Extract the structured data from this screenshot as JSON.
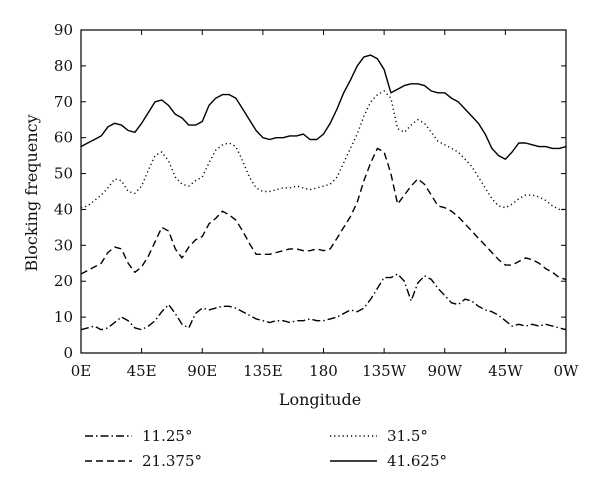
{
  "chart_data": {
    "type": "line",
    "title": "",
    "xlabel": "Longitude",
    "ylabel": "Blocking frequency",
    "x_ticks": [
      "0E",
      "45E",
      "90E",
      "135E",
      "180",
      "135W",
      "90W",
      "45W",
      "0W"
    ],
    "x_tick_values": [
      0,
      45,
      90,
      135,
      180,
      225,
      270,
      315,
      360
    ],
    "xlim": [
      0,
      360
    ],
    "ylim": [
      0,
      90
    ],
    "y_ticks": [
      0,
      10,
      20,
      30,
      40,
      50,
      60,
      70,
      80,
      90
    ],
    "grid": false,
    "legend_position": "bottom",
    "series": [
      {
        "name": "11.25°",
        "style": "dashdot",
        "x": [
          0,
          5,
          10,
          15,
          20,
          25,
          30,
          35,
          40,
          45,
          50,
          55,
          60,
          65,
          70,
          75,
          80,
          85,
          90,
          95,
          100,
          105,
          110,
          115,
          120,
          125,
          130,
          135,
          140,
          145,
          150,
          155,
          160,
          165,
          170,
          175,
          180,
          185,
          190,
          195,
          200,
          205,
          210,
          215,
          220,
          225,
          230,
          235,
          240,
          245,
          250,
          255,
          260,
          265,
          270,
          275,
          280,
          285,
          290,
          295,
          300,
          305,
          310,
          315,
          320,
          325,
          330,
          335,
          340,
          345,
          350,
          355,
          360
        ],
        "values": [
          6.5,
          7,
          7.5,
          6.5,
          7,
          8.5,
          10,
          9,
          7,
          6.5,
          7.5,
          9,
          11.5,
          13.5,
          11,
          8,
          7,
          11,
          12.5,
          12,
          12.5,
          13,
          13,
          12.5,
          11.5,
          10.5,
          9.5,
          9,
          8.5,
          9,
          9,
          8.5,
          9,
          9,
          9.5,
          9,
          9,
          9.5,
          10,
          11,
          12,
          11.5,
          12.5,
          15,
          18,
          21,
          21,
          22,
          20,
          14.5,
          19.5,
          21.5,
          20.5,
          18,
          16,
          14,
          13.5,
          15,
          14.5,
          13,
          12,
          11.5,
          10.5,
          9,
          7.5,
          8,
          7.5,
          8,
          7.5,
          8,
          7.5,
          7,
          6.5
        ]
      },
      {
        "name": "21.375°",
        "style": "dashed",
        "x": [
          0,
          5,
          10,
          15,
          20,
          25,
          30,
          35,
          40,
          45,
          50,
          55,
          60,
          65,
          70,
          75,
          80,
          85,
          90,
          95,
          100,
          105,
          110,
          115,
          120,
          125,
          130,
          135,
          140,
          145,
          150,
          155,
          160,
          165,
          170,
          175,
          180,
          185,
          190,
          195,
          200,
          205,
          210,
          215,
          220,
          225,
          230,
          235,
          240,
          245,
          250,
          255,
          260,
          265,
          270,
          275,
          280,
          285,
          290,
          295,
          300,
          305,
          310,
          315,
          320,
          325,
          330,
          335,
          340,
          345,
          350,
          355,
          360
        ],
        "values": [
          22,
          23,
          24,
          25,
          28,
          29.5,
          29,
          25,
          22.5,
          24,
          27,
          31,
          35,
          34,
          29,
          26.5,
          29.5,
          31.5,
          32.5,
          36,
          37.5,
          39.5,
          38.5,
          37,
          34,
          30.5,
          27.5,
          27.5,
          27.5,
          28,
          28.5,
          29,
          29,
          28.5,
          28.5,
          29,
          28.5,
          29,
          32,
          35,
          38,
          42,
          48,
          53,
          57,
          56,
          50,
          41.5,
          44,
          46.5,
          48.5,
          47,
          44,
          41,
          40.5,
          39.5,
          38,
          36,
          34,
          32,
          30,
          28,
          26,
          24.5,
          24.5,
          25.5,
          26.5,
          26,
          25,
          23.5,
          22.5,
          21,
          20.5
        ]
      },
      {
        "name": "31.5°",
        "style": "dotted",
        "x": [
          0,
          5,
          10,
          15,
          20,
          25,
          30,
          35,
          40,
          45,
          50,
          55,
          60,
          65,
          70,
          75,
          80,
          85,
          90,
          95,
          100,
          105,
          110,
          115,
          120,
          125,
          130,
          135,
          140,
          145,
          150,
          155,
          160,
          165,
          170,
          175,
          180,
          185,
          190,
          195,
          200,
          205,
          210,
          215,
          220,
          225,
          230,
          235,
          240,
          245,
          250,
          255,
          260,
          265,
          270,
          275,
          280,
          285,
          290,
          295,
          300,
          305,
          310,
          315,
          320,
          325,
          330,
          335,
          340,
          345,
          350,
          355,
          360
        ],
        "values": [
          40.5,
          41,
          42.5,
          44,
          46,
          48.5,
          48,
          45,
          44.5,
          46.5,
          51,
          55,
          56,
          53.5,
          49,
          47,
          46.5,
          48,
          49,
          53,
          56.5,
          58,
          58.5,
          57.5,
          53.5,
          49,
          46,
          45,
          45,
          45.5,
          46,
          46,
          46.5,
          46,
          45.5,
          46,
          46.5,
          47,
          49,
          53,
          57,
          61,
          66,
          70,
          72,
          73,
          71,
          62.5,
          61.5,
          63.5,
          65,
          64,
          61.5,
          59,
          58,
          57,
          56,
          54,
          52,
          49,
          46,
          43,
          41,
          40.5,
          41.5,
          43,
          44,
          44,
          43.5,
          42.5,
          41,
          40,
          40
        ]
      },
      {
        "name": "41.625°",
        "style": "solid",
        "x": [
          0,
          5,
          10,
          15,
          20,
          25,
          30,
          35,
          40,
          45,
          50,
          55,
          60,
          65,
          70,
          75,
          80,
          85,
          90,
          95,
          100,
          105,
          110,
          115,
          120,
          125,
          130,
          135,
          140,
          145,
          150,
          155,
          160,
          165,
          170,
          175,
          180,
          185,
          190,
          195,
          200,
          205,
          210,
          215,
          220,
          225,
          230,
          235,
          240,
          245,
          250,
          255,
          260,
          265,
          270,
          275,
          280,
          285,
          290,
          295,
          300,
          305,
          310,
          315,
          320,
          325,
          330,
          335,
          340,
          345,
          350,
          355,
          360
        ],
        "values": [
          57.5,
          58.5,
          59.5,
          60.5,
          63,
          64,
          63.5,
          62,
          61.5,
          64,
          67,
          70,
          70.5,
          69,
          66.5,
          65.5,
          63.5,
          63.5,
          64.5,
          69,
          71,
          72,
          72,
          71,
          68,
          65,
          62,
          60,
          59.5,
          60,
          60,
          60.5,
          60.5,
          61,
          59.5,
          59.5,
          61,
          64,
          68,
          72.5,
          76,
          80,
          82.5,
          83,
          82,
          79,
          72.5,
          73.5,
          74.5,
          75,
          75,
          74.5,
          73,
          72.5,
          72.5,
          71,
          70,
          68,
          66,
          64,
          61,
          57,
          55,
          54,
          56,
          58.5,
          58.5,
          58,
          57.5,
          57.5,
          57,
          57,
          57.5
        ]
      }
    ]
  }
}
